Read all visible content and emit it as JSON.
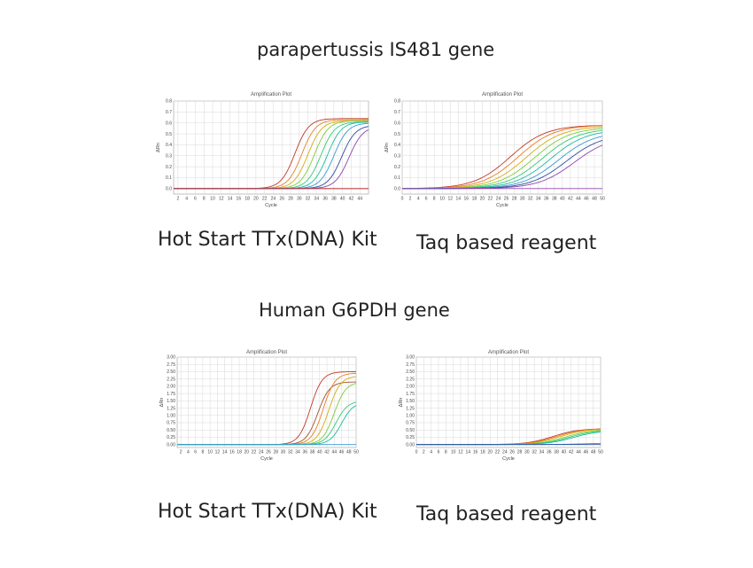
{
  "sections": [
    {
      "title": "parapertussis IS481 gene"
    },
    {
      "title": "Human G6PDH gene"
    }
  ],
  "captions": {
    "hot_start": "Hot Start TTx(DNA) Kit",
    "taq": "Taq based reagent"
  },
  "chart_data": [
    {
      "type": "line",
      "title": "Amplification Plot",
      "xlabel": "Cycle",
      "ylabel": "ΔRn",
      "xlim": [
        1,
        46
      ],
      "ylim": [
        -0.05,
        0.8
      ],
      "xticks": [
        2,
        4,
        6,
        8,
        10,
        12,
        14,
        16,
        18,
        20,
        22,
        24,
        26,
        28,
        30,
        32,
        34,
        36,
        38,
        40,
        42,
        44
      ],
      "yticks": [
        0.0,
        0.1,
        0.2,
        0.3,
        0.4,
        0.5,
        0.6,
        0.7,
        0.8
      ],
      "ytick_labels": [
        "0.0",
        "0.1",
        "0.2",
        "0.3",
        "0.4",
        "0.5",
        "0.6",
        "0.7",
        "0.8"
      ],
      "grid": true,
      "curve_model": {
        "kind": "sigmoid",
        "slope": 1.6
      },
      "series": [
        {
          "color": "#c0392b",
          "max": 0.64,
          "midpoint": 29.0
        },
        {
          "color": "#e67e22",
          "max": 0.63,
          "midpoint": 30.6
        },
        {
          "color": "#d4ac0d",
          "max": 0.62,
          "midpoint": 32.0
        },
        {
          "color": "#7dcc3a",
          "max": 0.62,
          "midpoint": 33.5
        },
        {
          "color": "#2ecc71",
          "max": 0.61,
          "midpoint": 35.0
        },
        {
          "color": "#1abc9c",
          "max": 0.61,
          "midpoint": 36.5
        },
        {
          "color": "#3498db",
          "max": 0.6,
          "midpoint": 38.0
        },
        {
          "color": "#2e4a9e",
          "max": 0.58,
          "midpoint": 39.8
        },
        {
          "color": "#8e44ad",
          "max": 0.57,
          "midpoint": 41.5
        },
        {
          "color": "#8e44ad",
          "max": 0.0,
          "midpoint": 50
        },
        {
          "color": "#c0392b",
          "max": 0.0,
          "midpoint": 50
        }
      ]
    },
    {
      "type": "line",
      "title": "Amplification Plot",
      "xlabel": "Cycle",
      "ylabel": "ΔRn",
      "xlim": [
        0,
        50
      ],
      "ylim": [
        -0.05,
        0.8
      ],
      "xticks": [
        0,
        2,
        4,
        6,
        8,
        10,
        12,
        14,
        16,
        18,
        20,
        22,
        24,
        26,
        28,
        30,
        32,
        34,
        36,
        38,
        40,
        42,
        44,
        46,
        48,
        50
      ],
      "yticks": [
        0.0,
        0.1,
        0.2,
        0.3,
        0.4,
        0.5,
        0.6,
        0.7,
        0.8
      ],
      "ytick_labels": [
        "0.0",
        "0.1",
        "0.2",
        "0.3",
        "0.4",
        "0.5",
        "0.6",
        "0.7",
        "0.8"
      ],
      "grid": true,
      "curve_model": {
        "kind": "sigmoid",
        "slope": 4.5
      },
      "series": [
        {
          "color": "#c0392b",
          "max": 0.58,
          "midpoint": 27.0
        },
        {
          "color": "#e67e22",
          "max": 0.58,
          "midpoint": 29.0
        },
        {
          "color": "#d4ac0d",
          "max": 0.57,
          "midpoint": 31.0
        },
        {
          "color": "#7dcc3a",
          "max": 0.56,
          "midpoint": 33.0
        },
        {
          "color": "#2ecc71",
          "max": 0.55,
          "midpoint": 35.0
        },
        {
          "color": "#1abc9c",
          "max": 0.54,
          "midpoint": 37.0
        },
        {
          "color": "#3498db",
          "max": 0.52,
          "midpoint": 39.0
        },
        {
          "color": "#2e4a9e",
          "max": 0.5,
          "midpoint": 41.0
        },
        {
          "color": "#8e44ad",
          "max": 0.48,
          "midpoint": 43.0
        },
        {
          "color": "#8e44ad",
          "max": 0.0,
          "midpoint": 60
        }
      ]
    },
    {
      "type": "line",
      "title": "Amplification Plot",
      "xlabel": "Cycle",
      "ylabel": "ΔRn",
      "xlim": [
        1,
        50
      ],
      "ylim": [
        -0.1,
        3.0
      ],
      "xticks": [
        2,
        4,
        6,
        8,
        10,
        12,
        14,
        16,
        18,
        20,
        22,
        24,
        26,
        28,
        30,
        32,
        34,
        36,
        38,
        40,
        42,
        44,
        46,
        48,
        50
      ],
      "yticks": [
        0.0,
        0.25,
        0.5,
        0.75,
        1.0,
        1.25,
        1.5,
        1.75,
        2.0,
        2.25,
        2.5,
        2.75,
        3.0
      ],
      "ytick_labels": [
        "0.00",
        "0.25",
        "0.50",
        "0.75",
        "1.00",
        "1.25",
        "1.50",
        "1.75",
        "2.00",
        "2.25",
        "2.50",
        "2.75",
        "3.00"
      ],
      "grid": true,
      "curve_model": {
        "kind": "sigmoid",
        "slope": 1.6
      },
      "series": [
        {
          "color": "#c0392b",
          "max": 2.5,
          "midpoint": 37.5
        },
        {
          "color": "#a0522d",
          "max": 2.15,
          "midpoint": 39.5
        },
        {
          "color": "#e67e22",
          "max": 2.45,
          "midpoint": 41.0
        },
        {
          "color": "#d4ac0d",
          "max": 2.35,
          "midpoint": 42.5
        },
        {
          "color": "#7dcc3a",
          "max": 2.15,
          "midpoint": 44.0
        },
        {
          "color": "#2ecc71",
          "max": 1.5,
          "midpoint": 44.5
        },
        {
          "color": "#1abc9c",
          "max": 1.45,
          "midpoint": 46.0
        },
        {
          "color": "#3498db",
          "max": 0.0,
          "midpoint": 60
        }
      ]
    },
    {
      "type": "line",
      "title": "Amplification Plot",
      "xlabel": "Cycle",
      "ylabel": "ΔRn",
      "xlim": [
        0,
        50
      ],
      "ylim": [
        -0.1,
        3.0
      ],
      "xticks": [
        0,
        2,
        4,
        6,
        8,
        10,
        12,
        14,
        16,
        18,
        20,
        22,
        24,
        26,
        28,
        30,
        32,
        34,
        36,
        38,
        40,
        42,
        44,
        46,
        48,
        50
      ],
      "yticks": [
        0.0,
        0.25,
        0.5,
        0.75,
        1.0,
        1.25,
        1.5,
        1.75,
        2.0,
        2.25,
        2.5,
        2.75,
        3.0
      ],
      "ytick_labels": [
        "0.00",
        "0.25",
        "0.50",
        "0.75",
        "1.00",
        "1.25",
        "1.50",
        "1.75",
        "2.00",
        "2.25",
        "2.50",
        "2.75",
        "3.00"
      ],
      "grid": true,
      "curve_model": {
        "kind": "sigmoid",
        "slope": 3.5
      },
      "series": [
        {
          "color": "#c0392b",
          "max": 0.55,
          "midpoint": 37.0
        },
        {
          "color": "#e67e22",
          "max": 0.55,
          "midpoint": 38.0
        },
        {
          "color": "#d4ac0d",
          "max": 0.54,
          "midpoint": 39.0
        },
        {
          "color": "#7dcc3a",
          "max": 0.52,
          "midpoint": 40.5
        },
        {
          "color": "#2ecc71",
          "max": 0.5,
          "midpoint": 41.5
        },
        {
          "color": "#1abc9c",
          "max": 0.48,
          "midpoint": 42.5
        },
        {
          "color": "#3498db",
          "max": 0.05,
          "midpoint": 45.0
        },
        {
          "color": "#2e4a9e",
          "max": 0.0,
          "midpoint": 60
        }
      ]
    }
  ]
}
